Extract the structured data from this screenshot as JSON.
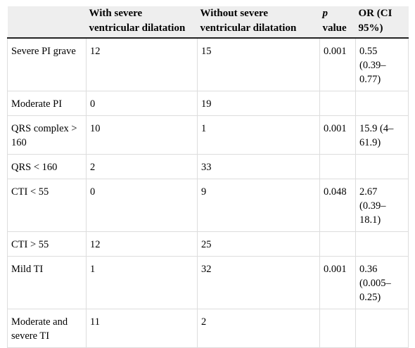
{
  "table": {
    "headers": [
      "",
      "With severe ventricular dilatation",
      "Without severe ventricular dilatation",
      {
        "italic": "p",
        "rest": "value"
      },
      "OR (CI 95%)"
    ],
    "rows": [
      [
        "Severe PI grave",
        "12",
        "15",
        "0.001",
        "0.55 (0.39–0.77)"
      ],
      [
        "Moderate PI",
        "0",
        "19",
        "",
        ""
      ],
      [
        "QRS complex > 160",
        "10",
        "1",
        "0.001",
        "15.9 (4–61.9)"
      ],
      [
        "QRS < 160",
        "2",
        "33",
        "",
        ""
      ],
      [
        "CTI < 55",
        "0",
        "9",
        "0.048",
        "2.67 (0.39–18.1)"
      ],
      [
        "CTI > 55",
        "12",
        "25",
        "",
        ""
      ],
      [
        "Mild TI",
        "1",
        "32",
        "0.001",
        "0.36 (0.005–0.25)"
      ],
      [
        "Moderate and severe TI",
        "11",
        "2",
        "",
        ""
      ]
    ]
  }
}
